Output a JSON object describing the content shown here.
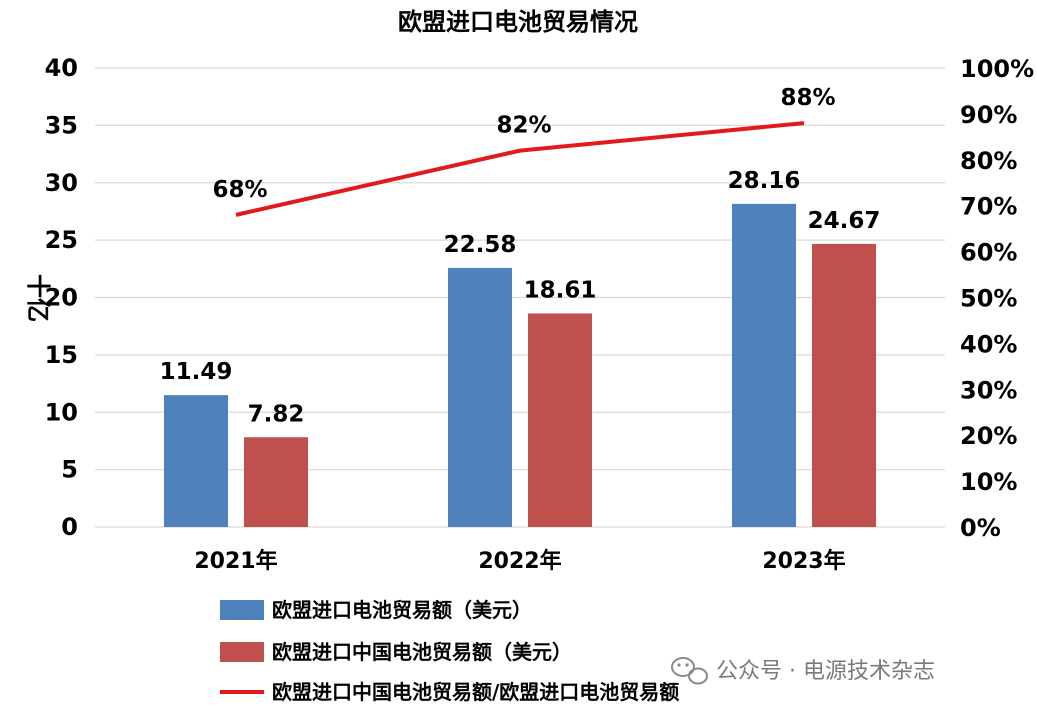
{
  "chart_data": {
    "type": "bar",
    "title": "欧盟进口电池贸易情况",
    "ylabel": "十亿",
    "categories": [
      "2021年",
      "2022年",
      "2023年"
    ],
    "ylim": [
      0,
      40
    ],
    "y_ticks": [
      "0",
      "5",
      "10",
      "15",
      "20",
      "25",
      "30",
      "35",
      "40"
    ],
    "y2lim": [
      0,
      100
    ],
    "y2_ticks": [
      "0%",
      "10%",
      "20%",
      "30%",
      "40%",
      "50%",
      "60%",
      "70%",
      "80%",
      "90%",
      "100%"
    ],
    "grid": true,
    "legend_position": "bottom",
    "series": [
      {
        "name": "欧盟进口电池贸易额（美元）",
        "type": "bar",
        "axis": "left",
        "color": "#4F81BD",
        "values": [
          11.49,
          22.58,
          28.16
        ],
        "labels": [
          "11.49",
          "22.58",
          "28.16"
        ]
      },
      {
        "name": "欧盟进口中国电池贸易额（美元）",
        "type": "bar",
        "axis": "left",
        "color": "#C0504D",
        "values": [
          7.82,
          18.61,
          24.67
        ],
        "labels": [
          "7.82",
          "18.61",
          "24.67"
        ]
      },
      {
        "name": "欧盟进口中国电池贸易额/欧盟进口电池贸易额",
        "type": "line",
        "axis": "right",
        "color": "#E31A1C",
        "values": [
          68,
          82,
          88
        ],
        "labels": [
          "68%",
          "82%",
          "88%"
        ]
      }
    ]
  },
  "watermark": {
    "icon": "wechat-icon",
    "text": "公众号 · 电源技术杂志"
  }
}
